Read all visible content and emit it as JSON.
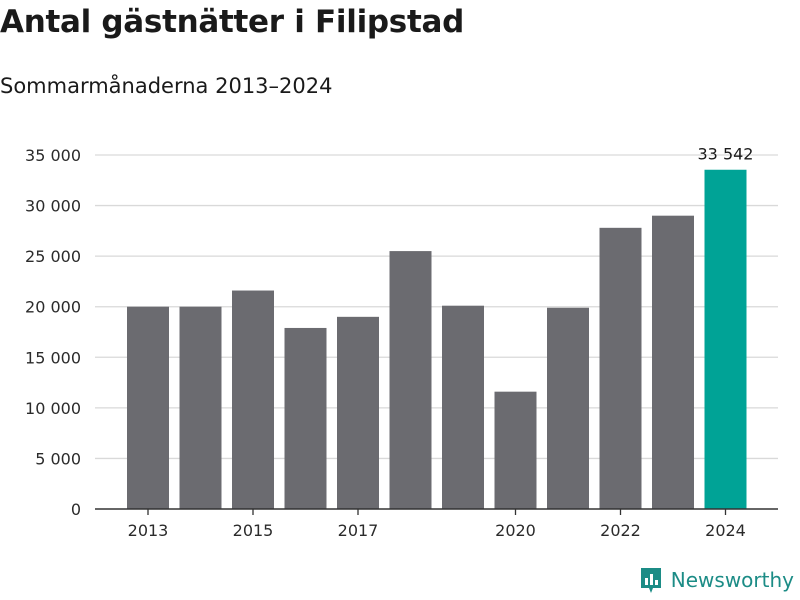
{
  "title": "Antal gästnätter i Filipstad",
  "subtitle": "Sommarmånaderna 2013–2024",
  "brand": {
    "name": "Newsworthy",
    "icon": "newsworthy-logo-icon",
    "color": "#1c8c86"
  },
  "colors": {
    "bar": "#6b6b70",
    "highlight": "#00a396",
    "grid": "#d9d9d9",
    "axis": "#333333"
  },
  "chart_data": {
    "type": "bar",
    "title": "Antal gästnätter i Filipstad",
    "subtitle": "Sommarmånaderna 2013–2024",
    "xlabel": "",
    "ylabel": "",
    "categories": [
      "2013",
      "2014",
      "2015",
      "2016",
      "2017",
      "2018",
      "2019",
      "2020",
      "2021",
      "2022",
      "2023",
      "2024"
    ],
    "x_tick_labels": [
      "2013",
      "2015",
      "2017",
      "2020",
      "2022",
      "2024"
    ],
    "values": [
      20000,
      20000,
      21600,
      17900,
      19000,
      25500,
      20100,
      11600,
      19900,
      27800,
      29000,
      33542
    ],
    "highlight_index": 11,
    "data_labels": [
      {
        "category": "2024",
        "text": "33 542"
      }
    ],
    "y_ticks": [
      0,
      5000,
      10000,
      15000,
      20000,
      25000,
      30000,
      35000
    ],
    "y_tick_labels": [
      "0",
      "5 000",
      "10 000",
      "15 000",
      "20 000",
      "25 000",
      "30 000",
      "35 000"
    ],
    "ylim": [
      0,
      35000
    ],
    "grid": true,
    "legend": "none"
  }
}
